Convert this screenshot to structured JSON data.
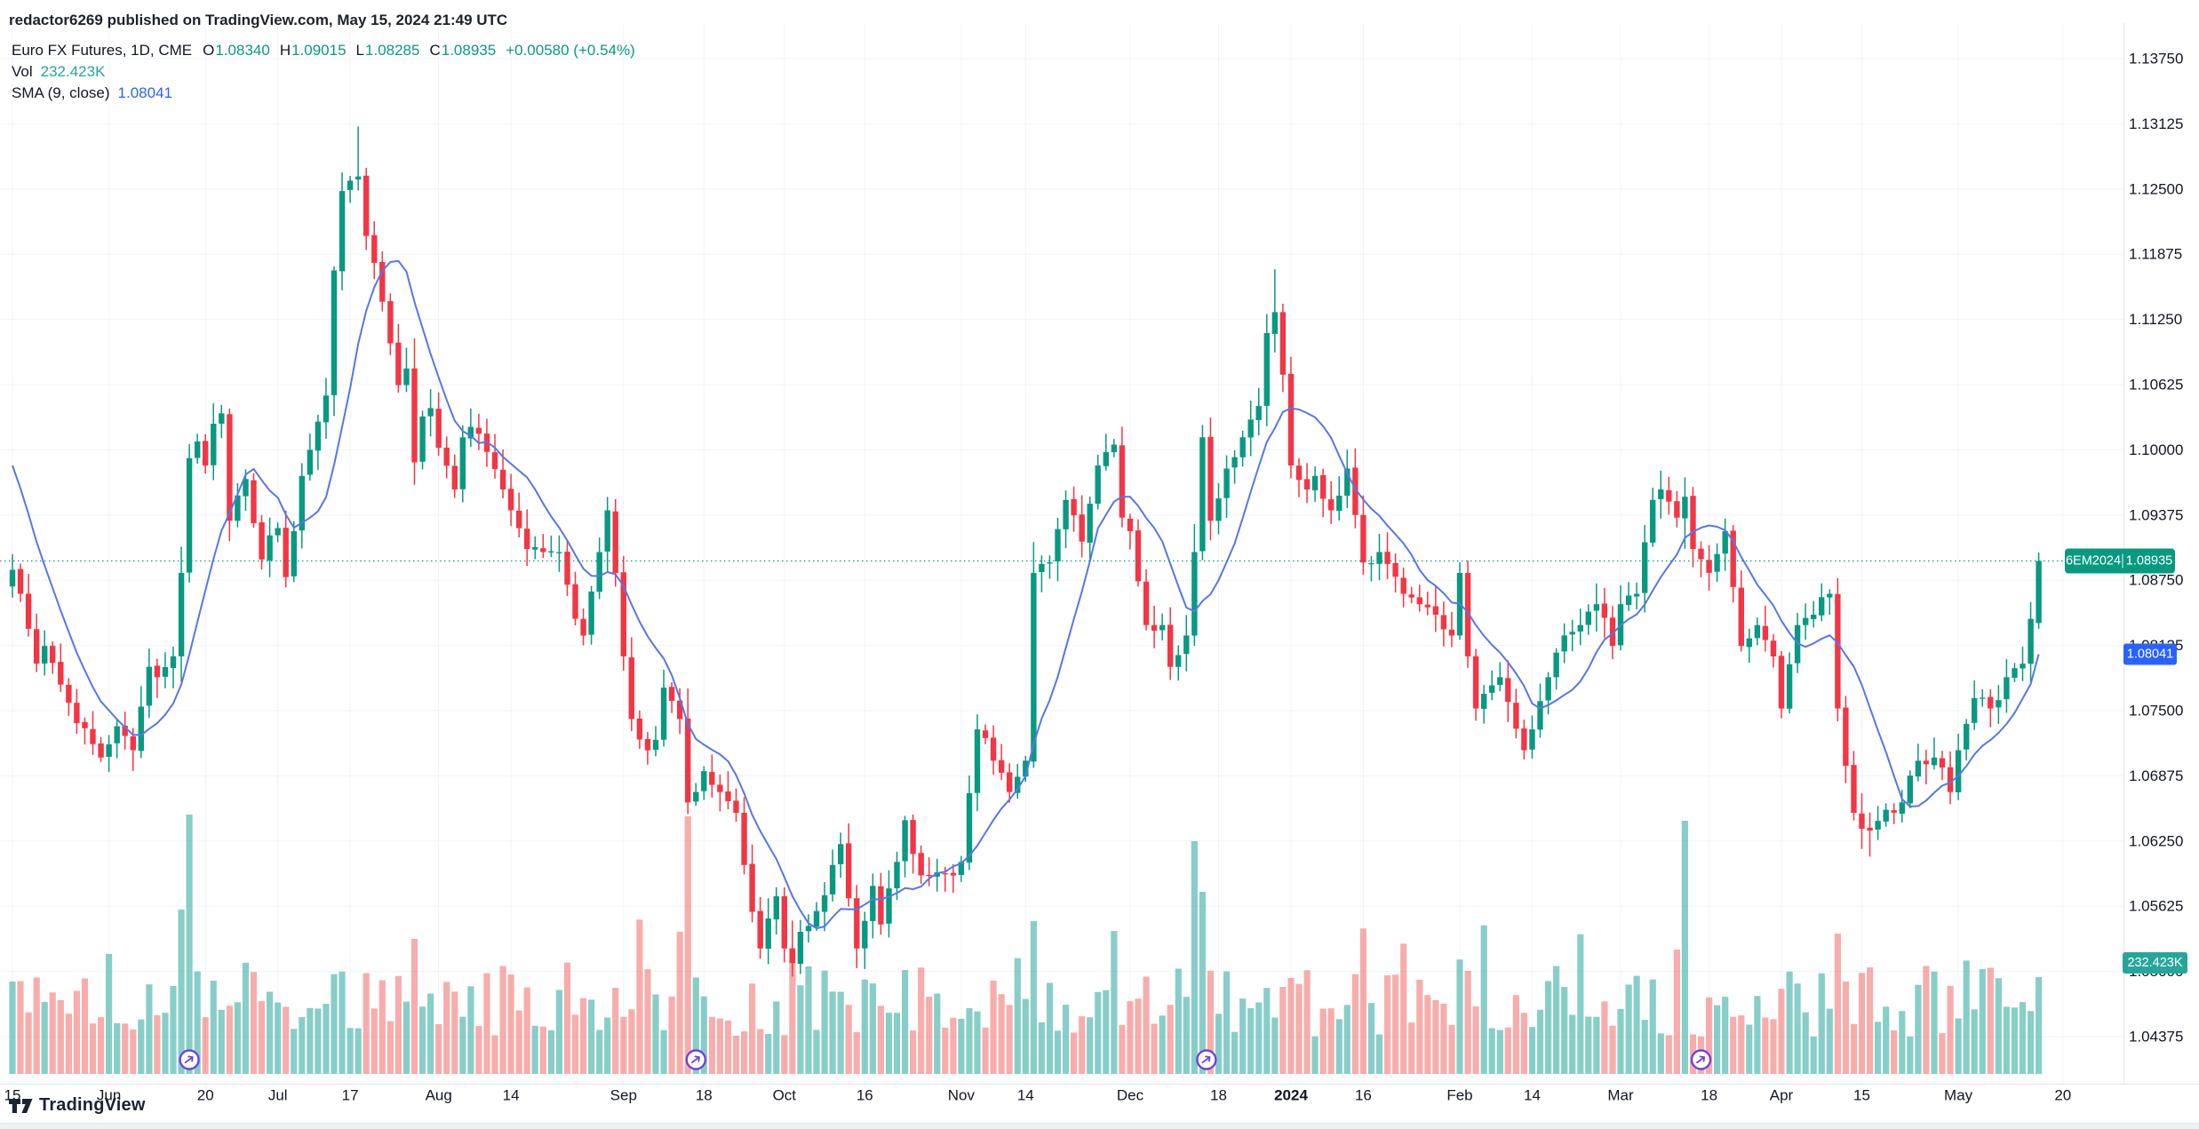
{
  "watermark": "redactor6269 published on TradingView.com, May 15, 2024 21:49 UTC",
  "legend": {
    "title": "Euro FX Futures, 1D, CME",
    "o_label": "O",
    "o_value": "1.08340",
    "h_label": "H",
    "h_value": "1.09015",
    "l_label": "L",
    "l_value": "1.08285",
    "c_label": "C",
    "c_value": "1.08935",
    "change": "+0.00580 (+0.54%)",
    "vol_label": "Vol",
    "vol_value": "232.423K",
    "sma_label": "SMA (9, close)",
    "sma_value": "1.08041"
  },
  "badges": {
    "symbol": "6EM2024",
    "last_price": "1.08935",
    "sma_value": "1.08041",
    "volume": "232.423K"
  },
  "attribution": "TradingView",
  "colors": {
    "up": "#089981",
    "down": "#F23645",
    "vol_up": "rgba(38,166,154,0.55)",
    "vol_down": "rgba(239,83,80,0.48)",
    "sma_line": "#5677E8",
    "badge_blue": "#2962FF",
    "vol_badge": "#26A69A",
    "grid": "#F0F3FA",
    "border": "#E0E3EB",
    "text": "#131722",
    "rollover": "#6F42D8"
  },
  "chart_data": {
    "type": "candlestick",
    "title": "Euro FX Futures, 1D, CME (6E daily, May 15 2023 - May 15 2024)",
    "last_close": 1.08935,
    "sma_last": 1.08041,
    "volume_last": "232.423K",
    "y_axis": {
      "labels": [
        "1.13750",
        "1.13125",
        "1.12500",
        "1.11875",
        "1.11250",
        "1.10625",
        "1.10000",
        "1.09375",
        "1.08750",
        "1.08125",
        "1.07500",
        "1.06875",
        "1.06250",
        "1.05625",
        "1.05000",
        "1.04375"
      ],
      "step": 0.00625
    },
    "x_axis": {
      "labels": [
        {
          "t": "15",
          "d": 0
        },
        {
          "t": "Jun",
          "d": 12
        },
        {
          "t": "20",
          "d": 24
        },
        {
          "t": "Jul",
          "d": 33
        },
        {
          "t": "17",
          "d": 42
        },
        {
          "t": "Aug",
          "d": 53
        },
        {
          "t": "14",
          "d": 62
        },
        {
          "t": "Sep",
          "d": 76
        },
        {
          "t": "18",
          "d": 86
        },
        {
          "t": "Oct",
          "d": 96
        },
        {
          "t": "16",
          "d": 106
        },
        {
          "t": "Nov",
          "d": 118
        },
        {
          "t": "14",
          "d": 126
        },
        {
          "t": "Dec",
          "d": 139
        },
        {
          "t": "18",
          "d": 150
        },
        {
          "t": "2024",
          "d": 159,
          "bold": true
        },
        {
          "t": "16",
          "d": 168
        },
        {
          "t": "Feb",
          "d": 180
        },
        {
          "t": "14",
          "d": 189
        },
        {
          "t": "Mar",
          "d": 200
        },
        {
          "t": "18",
          "d": 211
        },
        {
          "t": "Apr",
          "d": 220
        },
        {
          "t": "15",
          "d": 230
        },
        {
          "t": "May",
          "d": 242
        },
        {
          "t": "20",
          "d": 255
        }
      ]
    },
    "series": {
      "days_total": 253,
      "anchors": [
        [
          0,
          1.0885
        ],
        [
          1,
          1.0862
        ],
        [
          3,
          1.0795
        ],
        [
          4,
          1.0812
        ],
        [
          6,
          1.0775
        ],
        [
          8,
          1.0738
        ],
        [
          10,
          1.0718
        ],
        [
          11,
          1.0705
        ],
        [
          13,
          1.0735
        ],
        [
          15,
          1.0712
        ],
        [
          17,
          1.0792
        ],
        [
          18,
          1.0782
        ],
        [
          20,
          1.0802
        ],
        [
          21,
          1.0882
        ],
        [
          22,
          1.0992
        ],
        [
          23,
          1.1008
        ],
        [
          24,
          1.0985
        ],
        [
          25,
          1.1025
        ],
        [
          26,
          1.1035
        ],
        [
          27,
          1.0932
        ],
        [
          29,
          1.0972
        ],
        [
          31,
          1.0895
        ],
        [
          32,
          1.0918
        ],
        [
          33,
          1.0925
        ],
        [
          34,
          1.0878
        ],
        [
          36,
          1.0975
        ],
        [
          37,
          1.1
        ],
        [
          39,
          1.1052
        ],
        [
          40,
          1.1172
        ],
        [
          41,
          1.1248
        ],
        [
          42,
          1.1258
        ],
        [
          43,
          1.1262
        ],
        [
          44,
          1.1205
        ],
        [
          46,
          1.1142
        ],
        [
          47,
          1.1102
        ],
        [
          48,
          1.1062
        ],
        [
          49,
          1.1078
        ],
        [
          50,
          1.0988
        ],
        [
          51,
          1.1032
        ],
        [
          52,
          1.104
        ],
        [
          53,
          1.1002
        ],
        [
          55,
          1.0962
        ],
        [
          56,
          1.1012
        ],
        [
          57,
          1.1022
        ],
        [
          59,
          1.0998
        ],
        [
          61,
          1.0962
        ],
        [
          62,
          1.0942
        ],
        [
          64,
          1.0905
        ],
        [
          66,
          1.0902
        ],
        [
          68,
          1.0902
        ],
        [
          70,
          1.0838
        ],
        [
          71,
          1.0822
        ],
        [
          73,
          1.0902
        ],
        [
          74,
          1.0942
        ],
        [
          75,
          1.0882
        ],
        [
          76,
          1.0802
        ],
        [
          77,
          1.0742
        ],
        [
          79,
          1.0712
        ],
        [
          80,
          1.0722
        ],
        [
          81,
          1.0772
        ],
        [
          83,
          1.0742
        ],
        [
          84,
          1.0662
        ],
        [
          85,
          1.0672
        ],
        [
          86,
          1.0692
        ],
        [
          88,
          1.0672
        ],
        [
          90,
          1.0652
        ],
        [
          91,
          1.0602
        ],
        [
          93,
          1.0522
        ],
        [
          95,
          1.0572
        ],
        [
          96,
          1.0522
        ],
        [
          97,
          1.0508
        ],
        [
          98,
          1.0538
        ],
        [
          100,
          1.0558
        ],
        [
          102,
          1.0602
        ],
        [
          103,
          1.0622
        ],
        [
          105,
          1.0522
        ],
        [
          107,
          1.0582
        ],
        [
          108,
          1.0545
        ],
        [
          110,
          1.0605
        ],
        [
          111,
          1.0645
        ],
        [
          113,
          1.0592
        ],
        [
          115,
          1.0595
        ],
        [
          117,
          1.0592
        ],
        [
          118,
          1.0605
        ],
        [
          120,
          1.0732
        ],
        [
          122,
          1.0702
        ],
        [
          124,
          1.0672
        ],
        [
          126,
          1.0702
        ],
        [
          127,
          1.0882
        ],
        [
          129,
          1.0892
        ],
        [
          131,
          1.0952
        ],
        [
          133,
          1.0912
        ],
        [
          135,
          1.0985
        ],
        [
          137,
          1.1005
        ],
        [
          138,
          1.0935
        ],
        [
          139,
          1.0922
        ],
        [
          141,
          1.0832
        ],
        [
          143,
          1.0832
        ],
        [
          144,
          1.0792
        ],
        [
          146,
          1.0822
        ],
        [
          147,
          1.0902
        ],
        [
          148,
          1.1012
        ],
        [
          149,
          1.0932
        ],
        [
          151,
          1.0982
        ],
        [
          153,
          1.1012
        ],
        [
          155,
          1.1042
        ],
        [
          156,
          1.1112
        ],
        [
          157,
          1.1132
        ],
        [
          158,
          1.1072
        ],
        [
          159,
          1.0985
        ],
        [
          161,
          1.0962
        ],
        [
          162,
          1.0975
        ],
        [
          164,
          1.0942
        ],
        [
          166,
          1.0982
        ],
        [
          168,
          1.0892
        ],
        [
          170,
          1.0902
        ],
        [
          173,
          1.0862
        ],
        [
          175,
          1.0852
        ],
        [
          177,
          1.0842
        ],
        [
          179,
          1.0822
        ],
        [
          180,
          1.0882
        ],
        [
          181,
          1.0802
        ],
        [
          182,
          1.0752
        ],
        [
          185,
          1.0782
        ],
        [
          188,
          1.0712
        ],
        [
          189,
          1.0732
        ],
        [
          191,
          1.0782
        ],
        [
          193,
          1.0822
        ],
        [
          195,
          1.0832
        ],
        [
          197,
          1.0852
        ],
        [
          199,
          1.0812
        ],
        [
          200,
          1.0852
        ],
        [
          202,
          1.0862
        ],
        [
          204,
          1.0952
        ],
        [
          205,
          1.0962
        ],
        [
          207,
          1.0935
        ],
        [
          208,
          1.0955
        ],
        [
          209,
          1.0905
        ],
        [
          211,
          1.0882
        ],
        [
          213,
          1.0922
        ],
        [
          215,
          1.0812
        ],
        [
          217,
          1.0832
        ],
        [
          219,
          1.0802
        ],
        [
          220,
          1.0752
        ],
        [
          222,
          1.0832
        ],
        [
          224,
          1.0842
        ],
        [
          226,
          1.0862
        ],
        [
          227,
          1.0752
        ],
        [
          229,
          1.0652
        ],
        [
          231,
          1.0635
        ],
        [
          233,
          1.0655
        ],
        [
          235,
          1.0662
        ],
        [
          237,
          1.0702
        ],
        [
          239,
          1.0705
        ],
        [
          241,
          1.0672
        ],
        [
          242,
          1.0712
        ],
        [
          244,
          1.0762
        ],
        [
          246,
          1.0752
        ],
        [
          248,
          1.0782
        ],
        [
          250,
          1.0795
        ],
        [
          251,
          1.0838
        ],
        [
          252,
          1.08935
        ]
      ],
      "specials": {
        "43": {
          "h": 1.131
        },
        "97": {
          "l": 1.0495
        },
        "157": {
          "h": 1.1173
        },
        "231": {
          "l": 1.061
        },
        "252": {
          "o": 1.0834,
          "h": 1.09015,
          "l": 1.08285,
          "c": 1.08935
        }
      },
      "sma_pre": [
        1.1062,
        1.1048,
        1.1035,
        1.1015,
        1.0992,
        1.0968,
        1.0942,
        1.0918
      ],
      "volume_spikes": {
        "21": 185,
        "22": 292,
        "50": 152,
        "83": 160,
        "84": 290,
        "97": 142,
        "127": 172,
        "147": 262,
        "148": 205,
        "207": 140,
        "208": 285,
        "227": 158
      },
      "rollover_days": [
        22,
        85,
        148.5,
        210
      ]
    }
  }
}
